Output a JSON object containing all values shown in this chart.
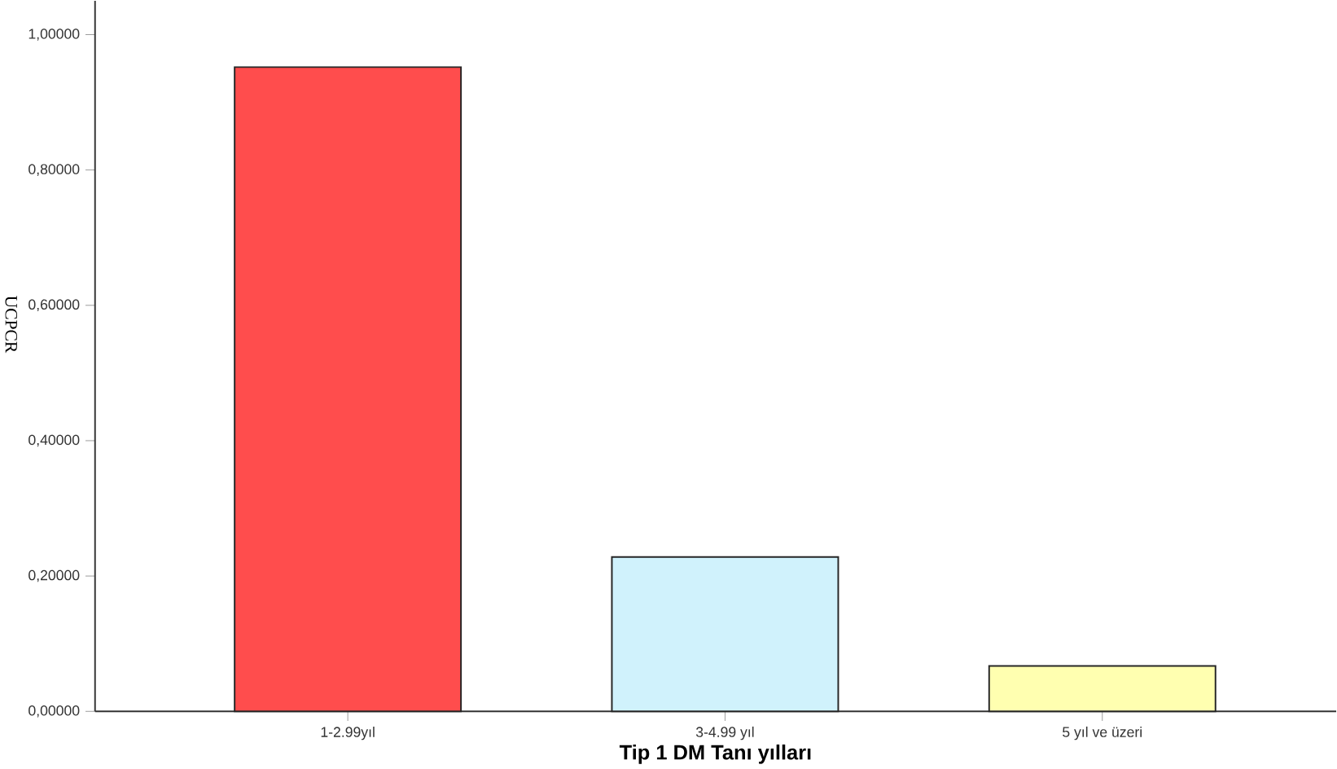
{
  "chart_data": {
    "type": "bar",
    "xlabel": "Tip 1 DM Tanı   yılları",
    "ylabel": "UCPCR",
    "categories": [
      "1-2.99yıl",
      "3-4.99 yıl",
      "5 yıl ve üzeri"
    ],
    "values": [
      0.952,
      0.228,
      0.067
    ],
    "colors": [
      "#ff4d4d",
      "#d0f2fc",
      "#ffffb0"
    ],
    "ylim": [
      0,
      1.05
    ],
    "yticks": [
      {
        "value": 0,
        "label": "0,00000"
      },
      {
        "value": 0.2,
        "label": "0,20000"
      },
      {
        "value": 0.4,
        "label": "0,40000"
      },
      {
        "value": 0.6,
        "label": "0,60000"
      },
      {
        "value": 0.8,
        "label": "0,80000"
      },
      {
        "value": 1,
        "label": "1,00000"
      }
    ]
  }
}
